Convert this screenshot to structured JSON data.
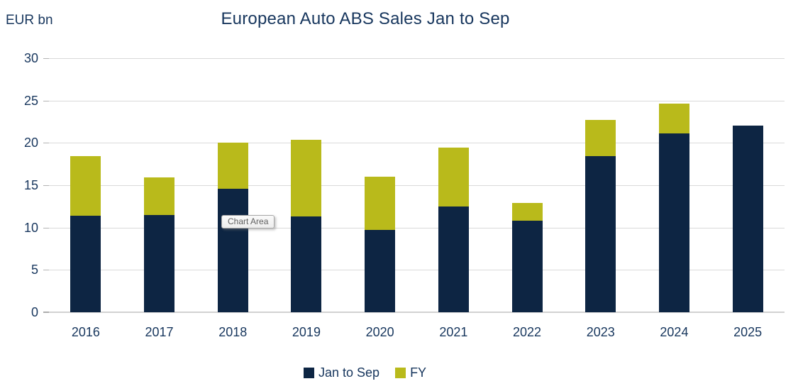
{
  "header": {
    "unit_label": "EUR bn",
    "title": "European Auto ABS Sales Jan to Sep"
  },
  "tooltip": {
    "text": "Chart Area"
  },
  "colors": {
    "jan_to_sep": "#0d2543",
    "fy": "#b9ba1b",
    "text": "#17365d",
    "gridline": "#d9d9d9"
  },
  "chart_data": {
    "type": "bar",
    "stacked": true,
    "title": "European Auto ABS Sales Jan to Sep",
    "unit": "EUR bn",
    "categories": [
      "2016",
      "2017",
      "2018",
      "2019",
      "2020",
      "2021",
      "2022",
      "2023",
      "2024",
      "2025"
    ],
    "series": [
      {
        "name": "Jan to Sep",
        "color": "#0d2543",
        "values": [
          11.4,
          11.5,
          14.6,
          11.3,
          9.7,
          12.5,
          10.8,
          18.4,
          21.1,
          22.0
        ]
      },
      {
        "name": "FY",
        "color": "#b9ba1b",
        "values_are_totals": true,
        "values": [
          18.4,
          15.9,
          20.0,
          20.4,
          16.0,
          19.4,
          12.9,
          22.7,
          24.6,
          null
        ]
      }
    ],
    "ylabel": "EUR bn",
    "xlabel": "",
    "ylim": [
      0,
      30
    ],
    "yticks": [
      0,
      5,
      10,
      15,
      20,
      25,
      30
    ],
    "grid": "horizontal",
    "legend_position": "bottom"
  }
}
